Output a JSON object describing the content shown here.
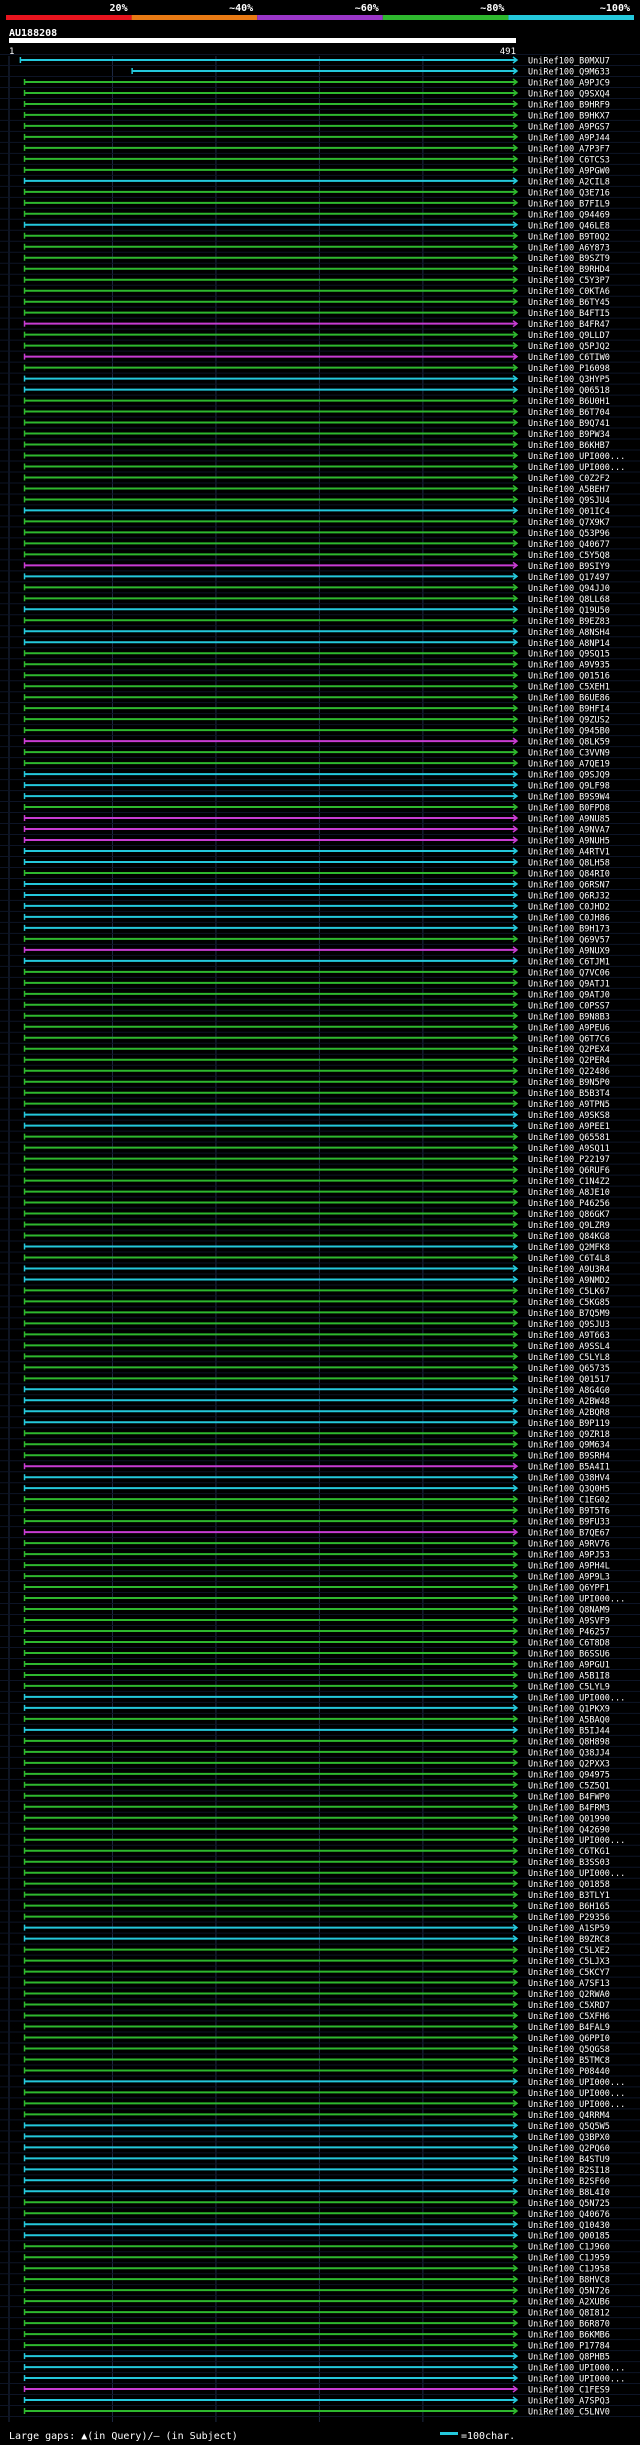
{
  "scale": {
    "labels": [
      "20%",
      "~40%",
      "~60%",
      "~80%",
      "~100%"
    ],
    "colors": [
      "#e8141e",
      "#e87a14",
      "#9a36c8",
      "#2eb82e",
      "#24c8dc"
    ]
  },
  "query": {
    "name": "AU188208",
    "start": "1",
    "end": "491",
    "length": 491
  },
  "colors": {
    "background": "#000000",
    "grid": "#1e2a44",
    "magenta": "#c83cd2",
    "green": "#2eb82e",
    "cyan": "#24c8dc",
    "text": "#ffffff"
  },
  "legend": {
    "gaps_text": "Large gaps: ▲(in Query)/– (in Subject)",
    "scale_text": "=100char."
  },
  "hits": [
    {
      "name": "UniRef100_B0MXU7",
      "color": "cyan",
      "start": 12
    },
    {
      "name": "UniRef100_Q9M633",
      "color": "cyan",
      "start": 120
    },
    {
      "name": "UniRef100_A9PJC9",
      "color": "green",
      "start": 16
    },
    {
      "name": "UniRef100_Q9SXQ4",
      "color": "green",
      "start": 16
    },
    {
      "name": "UniRef100_B9HRF9",
      "color": "green",
      "start": 16
    },
    {
      "name": "UniRef100_B9HKX7",
      "color": "green",
      "start": 16
    },
    {
      "name": "UniRef100_A9PGS7",
      "color": "green",
      "start": 16
    },
    {
      "name": "UniRef100_A9PJ44",
      "color": "green",
      "start": 16
    },
    {
      "name": "UniRef100_A7P3F7",
      "color": "green",
      "start": 16
    },
    {
      "name": "UniRef100_C6TCS3",
      "color": "green",
      "start": 16
    },
    {
      "name": "UniRef100_A9PGW0",
      "color": "green",
      "start": 16
    },
    {
      "name": "UniRef100_A2CIL8",
      "color": "cyan",
      "start": 16
    },
    {
      "name": "UniRef100_Q3E716",
      "color": "green",
      "start": 16
    },
    {
      "name": "UniRef100_B7FIL9",
      "color": "green",
      "start": 16
    },
    {
      "name": "UniRef100_Q94469",
      "color": "green",
      "start": 16
    },
    {
      "name": "UniRef100_Q46LE8",
      "color": "cyan",
      "start": 16
    },
    {
      "name": "UniRef100_B9T0Q2",
      "color": "green",
      "start": 16
    },
    {
      "name": "UniRef100_A6Y873",
      "color": "green",
      "start": 16
    },
    {
      "name": "UniRef100_B9SZT9",
      "color": "green",
      "start": 16
    },
    {
      "name": "UniRef100_B9RHD4",
      "color": "green",
      "start": 16
    },
    {
      "name": "UniRef100_C5Y3P7",
      "color": "green",
      "start": 16
    },
    {
      "name": "UniRef100_C0KTA6",
      "color": "green",
      "start": 16
    },
    {
      "name": "UniRef100_B6TY45",
      "color": "green",
      "start": 16
    },
    {
      "name": "UniRef100_B4FTI5",
      "color": "green",
      "start": 16
    },
    {
      "name": "UniRef100_B4FR47",
      "color": "magenta",
      "start": 16
    },
    {
      "name": "UniRef100_Q9LLD7",
      "color": "green",
      "start": 16
    },
    {
      "name": "UniRef100_Q5PJQ2",
      "color": "green",
      "start": 16
    },
    {
      "name": "UniRef100_C6TIW0",
      "color": "magenta",
      "start": 16
    },
    {
      "name": "UniRef100_P16098",
      "color": "green",
      "start": 16
    },
    {
      "name": "UniRef100_Q3HYP5",
      "color": "cyan",
      "start": 16
    },
    {
      "name": "UniRef100_Q06518",
      "color": "cyan",
      "start": 16
    },
    {
      "name": "UniRef100_B6U0H1",
      "color": "green",
      "start": 16
    },
    {
      "name": "UniRef100_B6T704",
      "color": "green",
      "start": 16
    },
    {
      "name": "UniRef100_B9Q741",
      "color": "green",
      "start": 16
    },
    {
      "name": "UniRef100_B9PW34",
      "color": "green",
      "start": 16
    },
    {
      "name": "UniRef100_B6KHB7",
      "color": "green",
      "start": 16
    },
    {
      "name": "UniRef100_UPI000...",
      "color": "green",
      "start": 16
    },
    {
      "name": "UniRef100_UPI000...",
      "color": "green",
      "start": 16
    },
    {
      "name": "UniRef100_C0Z2F2",
      "color": "green",
      "start": 16
    },
    {
      "name": "UniRef100_A5BEH7",
      "color": "green",
      "start": 16
    },
    {
      "name": "UniRef100_Q9SJU4",
      "color": "green",
      "start": 16
    },
    {
      "name": "UniRef100_Q01IC4",
      "color": "cyan",
      "start": 16
    },
    {
      "name": "UniRef100_Q7X9K7",
      "color": "green",
      "start": 16
    },
    {
      "name": "UniRef100_Q53P96",
      "color": "green",
      "start": 16
    },
    {
      "name": "UniRef100_Q40677",
      "color": "green",
      "start": 16
    },
    {
      "name": "UniRef100_C5Y5Q8",
      "color": "green",
      "start": 16
    },
    {
      "name": "UniRef100_B9SIY9",
      "color": "magenta",
      "start": 16
    },
    {
      "name": "UniRef100_Q17497",
      "color": "cyan",
      "start": 16
    },
    {
      "name": "UniRef100_Q94JJ0",
      "color": "green",
      "start": 16
    },
    {
      "name": "UniRef100_Q8LL68",
      "color": "green",
      "start": 16
    },
    {
      "name": "UniRef100_Q19U50",
      "color": "cyan",
      "start": 16
    },
    {
      "name": "UniRef100_B9EZ83",
      "color": "green",
      "start": 16
    },
    {
      "name": "UniRef100_A8NSH4",
      "color": "cyan",
      "start": 16
    },
    {
      "name": "UniRef100_A8NP14",
      "color": "cyan",
      "start": 16
    },
    {
      "name": "UniRef100_Q9SQ15",
      "color": "green",
      "start": 16
    },
    {
      "name": "UniRef100_A9V935",
      "color": "green",
      "start": 16
    },
    {
      "name": "UniRef100_Q01516",
      "color": "green",
      "start": 16
    },
    {
      "name": "UniRef100_C5XEH1",
      "color": "green",
      "start": 16
    },
    {
      "name": "UniRef100_B6UE86",
      "color": "green",
      "start": 16
    },
    {
      "name": "UniRef100_B9HFI4",
      "color": "green",
      "start": 16
    },
    {
      "name": "UniRef100_Q9ZUS2",
      "color": "green",
      "start": 16
    },
    {
      "name": "UniRef100_Q945B0",
      "color": "green",
      "start": 16
    },
    {
      "name": "UniRef100_Q8LK59",
      "color": "magenta",
      "start": 16
    },
    {
      "name": "UniRef100_C3VVN9",
      "color": "green",
      "start": 16
    },
    {
      "name": "UniRef100_A7QE19",
      "color": "green",
      "start": 16
    },
    {
      "name": "UniRef100_Q9SJQ9",
      "color": "cyan",
      "start": 16
    },
    {
      "name": "UniRef100_Q9LF98",
      "color": "cyan",
      "start": 16
    },
    {
      "name": "UniRef100_B9S9W4",
      "color": "cyan",
      "start": 16
    },
    {
      "name": "UniRef100_B0FPD8",
      "color": "green",
      "start": 16
    },
    {
      "name": "UniRef100_A9NU85",
      "color": "magenta",
      "start": 16
    },
    {
      "name": "UniRef100_A9NVA7",
      "color": "magenta",
      "start": 16
    },
    {
      "name": "UniRef100_A9NUH5",
      "color": "magenta",
      "start": 16
    },
    {
      "name": "UniRef100_A4RTV1",
      "color": "cyan",
      "start": 16
    },
    {
      "name": "UniRef100_Q8LH58",
      "color": "cyan",
      "start": 16
    },
    {
      "name": "UniRef100_Q84RI0",
      "color": "green",
      "start": 16
    },
    {
      "name": "UniRef100_Q6RSN7",
      "color": "cyan",
      "start": 16
    },
    {
      "name": "UniRef100_Q6RJ32",
      "color": "cyan",
      "start": 16
    },
    {
      "name": "UniRef100_C0JHD2",
      "color": "cyan",
      "start": 16
    },
    {
      "name": "UniRef100_C0JH86",
      "color": "cyan",
      "start": 16
    },
    {
      "name": "UniRef100_B9H173",
      "color": "cyan",
      "start": 16
    },
    {
      "name": "UniRef100_Q69V57",
      "color": "green",
      "start": 16
    },
    {
      "name": "UniRef100_A9NUX9",
      "color": "magenta",
      "start": 16
    },
    {
      "name": "UniRef100_C6TJM1",
      "color": "cyan",
      "start": 16
    },
    {
      "name": "UniRef100_Q7VC06",
      "color": "green",
      "start": 16
    },
    {
      "name": "UniRef100_Q9ATJ1",
      "color": "green",
      "start": 16
    },
    {
      "name": "UniRef100_Q9ATJ0",
      "color": "green",
      "start": 16
    },
    {
      "name": "UniRef100_C0PSS7",
      "color": "green",
      "start": 16
    },
    {
      "name": "UniRef100_B9N8B3",
      "color": "green",
      "start": 16
    },
    {
      "name": "UniRef100_A9PEU6",
      "color": "green",
      "start": 16
    },
    {
      "name": "UniRef100_Q6T7C6",
      "color": "green",
      "start": 16
    },
    {
      "name": "UniRef100_Q2PEX4",
      "color": "green",
      "start": 16
    },
    {
      "name": "UniRef100_Q2PER4",
      "color": "green",
      "start": 16
    },
    {
      "name": "UniRef100_Q22486",
      "color": "green",
      "start": 16
    },
    {
      "name": "UniRef100_B9N5P0",
      "color": "green",
      "start": 16
    },
    {
      "name": "UniRef100_B5B3T4",
      "color": "green",
      "start": 16
    },
    {
      "name": "UniRef100_A9TPN5",
      "color": "green",
      "start": 16
    },
    {
      "name": "UniRef100_A9SKS8",
      "color": "cyan",
      "start": 16
    },
    {
      "name": "UniRef100_A9PEE1",
      "color": "cyan",
      "start": 16
    },
    {
      "name": "UniRef100_Q65581",
      "color": "green",
      "start": 16
    },
    {
      "name": "UniRef100_A9SQ11",
      "color": "green",
      "start": 16
    },
    {
      "name": "UniRef100_P22197",
      "color": "green",
      "start": 16
    },
    {
      "name": "UniRef100_Q6RUF6",
      "color": "green",
      "start": 16
    },
    {
      "name": "UniRef100_C1N4Z2",
      "color": "green",
      "start": 16
    },
    {
      "name": "UniRef100_A8JE10",
      "color": "green",
      "start": 16
    },
    {
      "name": "UniRef100_P46256",
      "color": "green",
      "start": 16
    },
    {
      "name": "UniRef100_Q86GK7",
      "color": "green",
      "start": 16
    },
    {
      "name": "UniRef100_Q9LZR9",
      "color": "green",
      "start": 16
    },
    {
      "name": "UniRef100_Q84KG8",
      "color": "green",
      "start": 16
    },
    {
      "name": "UniRef100_Q2MFK8",
      "color": "cyan",
      "start": 16
    },
    {
      "name": "UniRef100_C6T4L8",
      "color": "green",
      "start": 16
    },
    {
      "name": "UniRef100_A9U3R4",
      "color": "cyan",
      "start": 16
    },
    {
      "name": "UniRef100_A9NMD2",
      "color": "cyan",
      "start": 16
    },
    {
      "name": "UniRef100_C5LK67",
      "color": "green",
      "start": 16
    },
    {
      "name": "UniRef100_C5KG85",
      "color": "green",
      "start": 16
    },
    {
      "name": "UniRef100_B7Q5M9",
      "color": "green",
      "start": 16
    },
    {
      "name": "UniRef100_Q9SJU3",
      "color": "green",
      "start": 16
    },
    {
      "name": "UniRef100_A9T663",
      "color": "green",
      "start": 16
    },
    {
      "name": "UniRef100_A9SSL4",
      "color": "green",
      "start": 16
    },
    {
      "name": "UniRef100_C5LYL8",
      "color": "green",
      "start": 16
    },
    {
      "name": "UniRef100_Q65735",
      "color": "green",
      "start": 16
    },
    {
      "name": "UniRef100_Q01517",
      "color": "green",
      "start": 16
    },
    {
      "name": "UniRef100_A8G4G0",
      "color": "cyan",
      "start": 16
    },
    {
      "name": "UniRef100_A2BW48",
      "color": "cyan",
      "start": 16
    },
    {
      "name": "UniRef100_A2BQR8",
      "color": "cyan",
      "start": 16
    },
    {
      "name": "UniRef100_B9P119",
      "color": "cyan",
      "start": 16
    },
    {
      "name": "UniRef100_Q9ZR18",
      "color": "green",
      "start": 16
    },
    {
      "name": "UniRef100_Q9M634",
      "color": "green",
      "start": 16
    },
    {
      "name": "UniRef100_B9SRH4",
      "color": "green",
      "start": 16
    },
    {
      "name": "UniRef100_B5A4I1",
      "color": "magenta",
      "start": 16
    },
    {
      "name": "UniRef100_Q38HV4",
      "color": "cyan",
      "start": 16
    },
    {
      "name": "UniRef100_Q3Q0H5",
      "color": "cyan",
      "start": 16
    },
    {
      "name": "UniRef100_C1EG02",
      "color": "green",
      "start": 16
    },
    {
      "name": "UniRef100_B9T5T6",
      "color": "green",
      "start": 16
    },
    {
      "name": "UniRef100_B9FU33",
      "color": "green",
      "start": 16
    },
    {
      "name": "UniRef100_B7QE67",
      "color": "magenta",
      "start": 16
    },
    {
      "name": "UniRef100_A9RV76",
      "color": "green",
      "start": 16
    },
    {
      "name": "UniRef100_A9PJ53",
      "color": "green",
      "start": 16
    },
    {
      "name": "UniRef100_A9PH4L",
      "color": "green",
      "start": 16
    },
    {
      "name": "UniRef100_A9P9L3",
      "color": "green",
      "start": 16
    },
    {
      "name": "UniRef100_Q6YPF1",
      "color": "green",
      "start": 16
    },
    {
      "name": "UniRef100_UPI000...",
      "color": "green",
      "start": 16
    },
    {
      "name": "UniRef100_Q8NAM9",
      "color": "green",
      "start": 16
    },
    {
      "name": "UniRef100_A9SVF9",
      "color": "green",
      "start": 16
    },
    {
      "name": "UniRef100_P46257",
      "color": "green",
      "start": 16
    },
    {
      "name": "UniRef100_C6T8D8",
      "color": "green",
      "start": 16
    },
    {
      "name": "UniRef100_B6SSU6",
      "color": "green",
      "start": 16
    },
    {
      "name": "UniRef100_A9PGU1",
      "color": "green",
      "start": 16
    },
    {
      "name": "UniRef100_A5B1I8",
      "color": "green",
      "start": 16
    },
    {
      "name": "UniRef100_C5LYL9",
      "color": "green",
      "start": 16
    },
    {
      "name": "UniRef100_UPI000...",
      "color": "cyan",
      "start": 16
    },
    {
      "name": "UniRef100_Q1PKX9",
      "color": "cyan",
      "start": 16
    },
    {
      "name": "UniRef100_A5BAQ0",
      "color": "green",
      "start": 16
    },
    {
      "name": "UniRef100_B5IJ44",
      "color": "cyan",
      "start": 16
    },
    {
      "name": "UniRef100_Q8H898",
      "color": "green",
      "start": 16
    },
    {
      "name": "UniRef100_Q38JJ4",
      "color": "green",
      "start": 16
    },
    {
      "name": "UniRef100_Q2PXX3",
      "color": "green",
      "start": 16
    },
    {
      "name": "UniRef100_Q94975",
      "color": "green",
      "start": 16
    },
    {
      "name": "UniRef100_C5Z5Q1",
      "color": "green",
      "start": 16
    },
    {
      "name": "UniRef100_B4FWP0",
      "color": "green",
      "start": 16
    },
    {
      "name": "UniRef100_B4FRM3",
      "color": "green",
      "start": 16
    },
    {
      "name": "UniRef100_Q01990",
      "color": "green",
      "start": 16
    },
    {
      "name": "UniRef100_Q42690",
      "color": "green",
      "start": 16
    },
    {
      "name": "UniRef100_UPI000...",
      "color": "green",
      "start": 16
    },
    {
      "name": "UniRef100_C6TKG1",
      "color": "green",
      "start": 16
    },
    {
      "name": "UniRef100_B3SS03",
      "color": "green",
      "start": 16
    },
    {
      "name": "UniRef100_UPI000...",
      "color": "green",
      "start": 16
    },
    {
      "name": "UniRef100_Q01858",
      "color": "green",
      "start": 16
    },
    {
      "name": "UniRef100_B3TLY1",
      "color": "green",
      "start": 16
    },
    {
      "name": "UniRef100_B6H165",
      "color": "green",
      "start": 16
    },
    {
      "name": "UniRef100_P29356",
      "color": "green",
      "start": 16
    },
    {
      "name": "UniRef100_A1SP59",
      "color": "cyan",
      "start": 16
    },
    {
      "name": "UniRef100_B9ZRC8",
      "color": "cyan",
      "start": 16
    },
    {
      "name": "UniRef100_C5LXE2",
      "color": "green",
      "start": 16
    },
    {
      "name": "UniRef100_C5LJX3",
      "color": "green",
      "start": 16
    },
    {
      "name": "UniRef100_C5KCY7",
      "color": "green",
      "start": 16
    },
    {
      "name": "UniRef100_A7SF13",
      "color": "green",
      "start": 16
    },
    {
      "name": "UniRef100_Q2RWA0",
      "color": "green",
      "start": 16
    },
    {
      "name": "UniRef100_C5XRD7",
      "color": "green",
      "start": 16
    },
    {
      "name": "UniRef100_C5XFH6",
      "color": "green",
      "start": 16
    },
    {
      "name": "UniRef100_B4FAL9",
      "color": "green",
      "start": 16
    },
    {
      "name": "UniRef100_Q6PPI0",
      "color": "green",
      "start": 16
    },
    {
      "name": "UniRef100_Q5QGS8",
      "color": "green",
      "start": 16
    },
    {
      "name": "UniRef100_B5TMC8",
      "color": "green",
      "start": 16
    },
    {
      "name": "UniRef100_P08440",
      "color": "green",
      "start": 16
    },
    {
      "name": "UniRef100_UPI000...",
      "color": "cyan",
      "start": 16
    },
    {
      "name": "UniRef100_UPI000...",
      "color": "green",
      "start": 16
    },
    {
      "name": "UniRef100_UPI000...",
      "color": "green",
      "start": 16
    },
    {
      "name": "UniRef100_Q4RRM4",
      "color": "green",
      "start": 16
    },
    {
      "name": "UniRef100_Q5Q5W5",
      "color": "cyan",
      "start": 16
    },
    {
      "name": "UniRef100_Q3BPX0",
      "color": "cyan",
      "start": 16
    },
    {
      "name": "UniRef100_Q2PQ60",
      "color": "cyan",
      "start": 16
    },
    {
      "name": "UniRef100_B4STU9",
      "color": "cyan",
      "start": 16
    },
    {
      "name": "UniRef100_B2SI18",
      "color": "cyan",
      "start": 16
    },
    {
      "name": "UniRef100_B2SF60",
      "color": "cyan",
      "start": 16
    },
    {
      "name": "UniRef100_B8L4I0",
      "color": "cyan",
      "start": 16
    },
    {
      "name": "UniRef100_Q5N725",
      "color": "green",
      "start": 16
    },
    {
      "name": "UniRef100_Q40676",
      "color": "green",
      "start": 16
    },
    {
      "name": "UniRef100_Q10430",
      "color": "cyan",
      "start": 16
    },
    {
      "name": "UniRef100_Q00185",
      "color": "cyan",
      "start": 16
    },
    {
      "name": "UniRef100_C1J960",
      "color": "green",
      "start": 16
    },
    {
      "name": "UniRef100_C1J959",
      "color": "green",
      "start": 16
    },
    {
      "name": "UniRef100_C1J958",
      "color": "green",
      "start": 16
    },
    {
      "name": "UniRef100_B8HVC8",
      "color": "green",
      "start": 16
    },
    {
      "name": "UniRef100_Q5N726",
      "color": "green",
      "start": 16
    },
    {
      "name": "UniRef100_A2XUB6",
      "color": "green",
      "start": 16
    },
    {
      "name": "UniRef100_Q8I812",
      "color": "green",
      "start": 16
    },
    {
      "name": "UniRef100_B6R870",
      "color": "green",
      "start": 16
    },
    {
      "name": "UniRef100_B6KMB6",
      "color": "green",
      "start": 16
    },
    {
      "name": "UniRef100_P17784",
      "color": "green",
      "start": 16
    },
    {
      "name": "UniRef100_Q8PHB5",
      "color": "cyan",
      "start": 16
    },
    {
      "name": "UniRef100_UPI000...",
      "color": "cyan",
      "start": 16
    },
    {
      "name": "UniRef100_UPI000...",
      "color": "cyan",
      "start": 16
    },
    {
      "name": "UniRef100_C1FES9",
      "color": "magenta",
      "start": 16
    },
    {
      "name": "UniRef100_A7SPQ3",
      "color": "cyan",
      "start": 16
    },
    {
      "name": "UniRef100_C5LNV0",
      "color": "green",
      "start": 16
    }
  ]
}
